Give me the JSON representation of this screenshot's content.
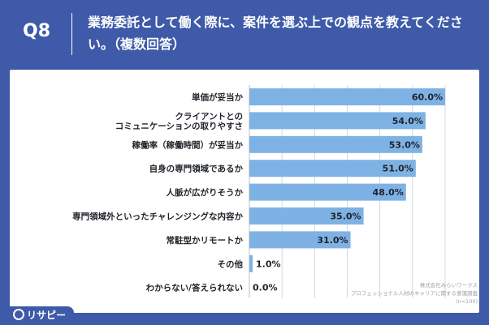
{
  "header": {
    "question_number": "Q8",
    "title": "業務委託として働く際に、案件を選ぶ上での観点を教えてください。（複数回答）"
  },
  "chart_data": {
    "type": "bar",
    "orientation": "horizontal",
    "categories": [
      "単価が妥当か",
      "クライアントとの\nコミュニケーションの取りやすさ",
      "稼働率（稼働時間）が妥当か",
      "自身の専門領域であるか",
      "人脈が広がりそうか",
      "専門領域外といったチャレンジングな内容か",
      "常駐型かリモートか",
      "その他",
      "わからない/答えられない"
    ],
    "values": [
      60.0,
      54.0,
      53.0,
      51.0,
      48.0,
      35.0,
      31.0,
      1.0,
      0.0
    ],
    "value_labels": [
      "60.0%",
      "54.0%",
      "53.0%",
      "51.0%",
      "48.0%",
      "35.0%",
      "31.0%",
      "1.0%",
      "0.0%"
    ],
    "xlim": [
      0,
      60
    ],
    "bar_color": "#7fb2e4",
    "grid": true
  },
  "source": {
    "line1": "株式会社みらいワークス",
    "line2": "プロフェッショナル人材のキャリアに関する意識調査",
    "line3": "(n=100)"
  },
  "brand": {
    "name": "リサピー"
  },
  "colors": {
    "header_bg": "#3e5aa8",
    "bar": "#7fb2e4",
    "grid": "#d4d7dc"
  }
}
